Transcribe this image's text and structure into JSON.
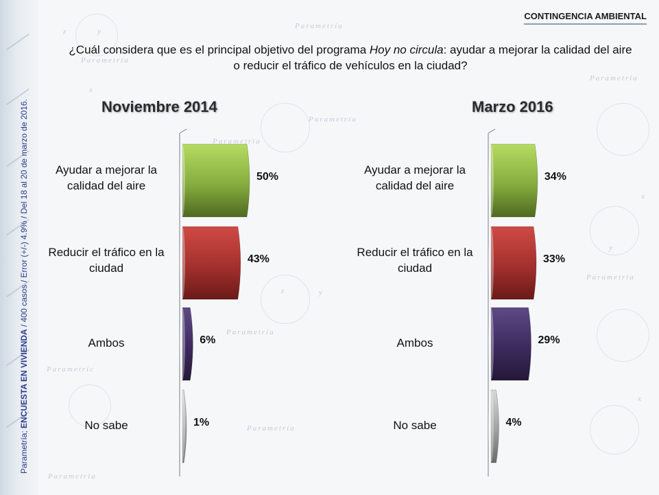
{
  "header": {
    "section_tag": "CONTINGENCIA AMBIENTAL",
    "question_part1": "¿Cuál considera que es el principal objetivo del programa ",
    "question_italic": "Hoy no circula",
    "question_part2": ": ayudar a mejorar la calidad del aire o reducir el tráfico de vehículos en la ciudad?"
  },
  "source": {
    "prefix": "Parametría; ",
    "bold": "ENCUESTA EN VIVIENDA",
    "suffix": " / 400 casos / Error (+/-) 4.9% / Del 18 al 20 de marzo de 2016."
  },
  "watermark": {
    "brand": "Parametría",
    "brand_alt": "Parametric",
    "glyph_x": "x",
    "glyph_y": "y",
    "glyph_z": "z"
  },
  "colors": {
    "green": "#7ea23a",
    "red": "#a8302f",
    "purple": "#3c2a5e",
    "gray": "#a0a0a0"
  },
  "chart_data": [
    {
      "type": "bar",
      "title": "Noviembre 2014",
      "categories": [
        "Ayudar a mejorar la calidad del aire",
        "Reducir el tráfico en la ciudad",
        "Ambos",
        "No sabe"
      ],
      "values": [
        50,
        43,
        6,
        1
      ],
      "value_labels": [
        "50%",
        "43%",
        "6%",
        "1%"
      ],
      "unit": "%"
    },
    {
      "type": "bar",
      "title": "Marzo 2016",
      "categories": [
        "Ayudar a mejorar la calidad del aire",
        "Reducir el tráfico en la ciudad",
        "Ambos",
        "No sabe"
      ],
      "values": [
        34,
        33,
        29,
        4
      ],
      "value_labels": [
        "34%",
        "33%",
        "29%",
        "4%"
      ],
      "unit": "%"
    }
  ]
}
